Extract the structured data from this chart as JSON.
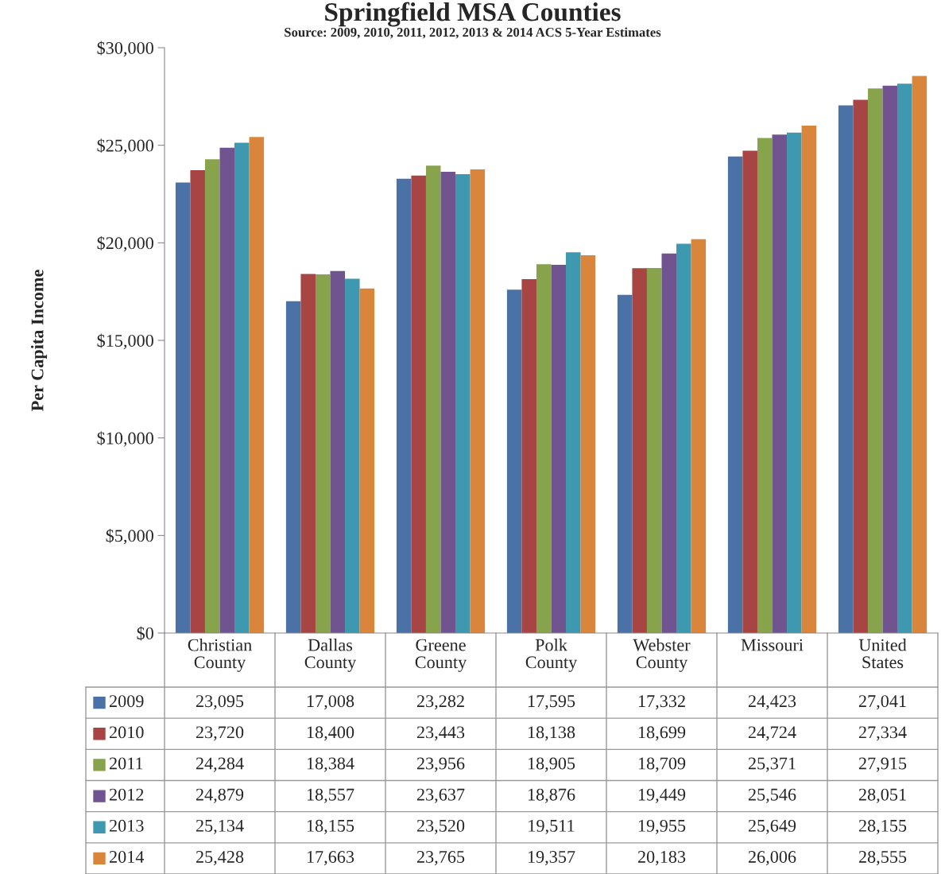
{
  "chart_data": {
    "type": "bar",
    "title": "Springfield MSA Counties",
    "subtitle": "Source: 2009, 2010, 2011, 2012, 2013 & 2014 ACS 5-Year Estimates",
    "ylabel": "Per Capita Income",
    "categories": [
      "Christian County",
      "Dallas County",
      "Greene County",
      "Polk County",
      "Webster County",
      "Missouri",
      "United States"
    ],
    "series": [
      {
        "name": "2009",
        "color": "#4a72a6",
        "values": [
          23095,
          17008,
          23282,
          17595,
          17332,
          24423,
          27041
        ],
        "value_labels": [
          "23,095",
          "17,008",
          "23,282",
          "17,595",
          "17,332",
          "24,423",
          "27,041"
        ]
      },
      {
        "name": "2010",
        "color": "#a64543",
        "values": [
          23720,
          18400,
          23443,
          18138,
          18699,
          24724,
          27334
        ],
        "value_labels": [
          "23,720",
          "18,400",
          "23,443",
          "18,138",
          "18,699",
          "24,724",
          "27,334"
        ]
      },
      {
        "name": "2011",
        "color": "#87a34c",
        "values": [
          24284,
          18384,
          23956,
          18905,
          18709,
          25371,
          27915
        ],
        "value_labels": [
          "24,284",
          "18,384",
          "23,956",
          "18,905",
          "18,709",
          "25,371",
          "27,915"
        ]
      },
      {
        "name": "2012",
        "color": "#705490",
        "values": [
          24879,
          18557,
          23637,
          18876,
          19449,
          25546,
          28051
        ],
        "value_labels": [
          "24,879",
          "18,557",
          "23,637",
          "18,876",
          "19,449",
          "25,546",
          "28,051"
        ]
      },
      {
        "name": "2013",
        "color": "#3d98b0",
        "values": [
          25134,
          18155,
          23520,
          19511,
          19955,
          25649,
          28155
        ],
        "value_labels": [
          "25,134",
          "18,155",
          "23,520",
          "19,511",
          "19,955",
          "25,649",
          "28,155"
        ]
      },
      {
        "name": "2014",
        "color": "#d9853b",
        "values": [
          25428,
          17663,
          23765,
          19357,
          20183,
          26006,
          28555
        ],
        "value_labels": [
          "25,428",
          "17,663",
          "23,765",
          "19,357",
          "20,183",
          "26,006",
          "28,555"
        ]
      }
    ],
    "ylim": [
      0,
      30000
    ],
    "yticks": [
      {
        "value": 0,
        "label": "$0"
      },
      {
        "value": 5000,
        "label": "$5,000"
      },
      {
        "value": 10000,
        "label": "$10,000"
      },
      {
        "value": 15000,
        "label": "$15,000"
      },
      {
        "value": 20000,
        "label": "$20,000"
      },
      {
        "value": 25000,
        "label": "$25,000"
      },
      {
        "value": 30000,
        "label": "$30,000"
      }
    ],
    "legend": "bottom"
  }
}
